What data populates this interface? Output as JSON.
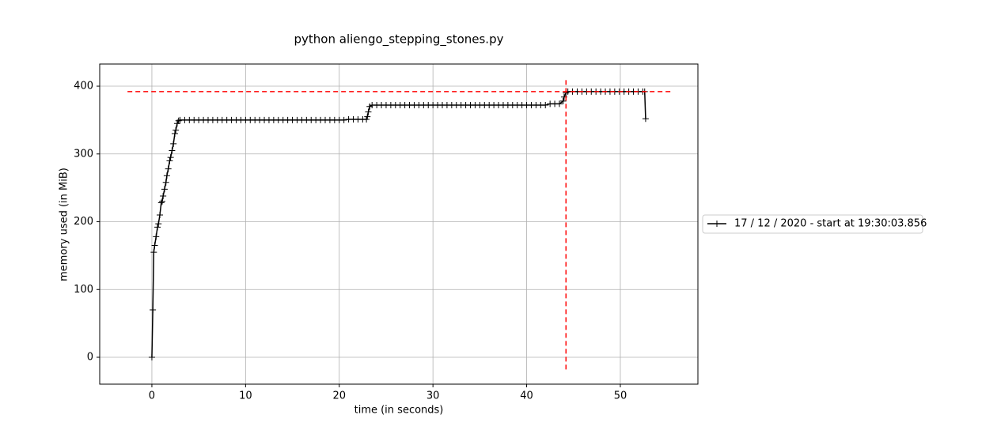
{
  "chart_data": {
    "type": "line",
    "title": "python aliengo_stepping_stones.py",
    "xlabel": "time (in seconds)",
    "ylabel": "memory used (in MiB)",
    "x": [
      0,
      0.1,
      0.2,
      0.3,
      0.45,
      0.6,
      0.7,
      0.85,
      1.0,
      1.1,
      1.2,
      1.35,
      1.5,
      1.6,
      1.75,
      1.9,
      2.0,
      2.15,
      2.3,
      2.45,
      2.55,
      2.7,
      2.85,
      3,
      3.5,
      4,
      4.5,
      5,
      5.5,
      6,
      6.5,
      7,
      7.5,
      8,
      8.5,
      9,
      9.5,
      10,
      10.5,
      11,
      11.5,
      12,
      12.5,
      13,
      13.5,
      14,
      14.5,
      15,
      15.5,
      16,
      16.5,
      17,
      17.5,
      18,
      18.5,
      19,
      19.5,
      20,
      20.5,
      21,
      21.5,
      22,
      22.5,
      22.9,
      23.0,
      23.1,
      23.25,
      23.5,
      24,
      24.5,
      25,
      25.5,
      26,
      26.5,
      27,
      27.5,
      28,
      28.5,
      29,
      29.5,
      30,
      30.5,
      31,
      31.5,
      32,
      32.5,
      33,
      33.5,
      34,
      34.5,
      35,
      35.5,
      36,
      36.5,
      37,
      37.5,
      38,
      38.5,
      39,
      39.5,
      40,
      40.5,
      41,
      41.5,
      42,
      42.5,
      43,
      43.5,
      43.9,
      44.0,
      44.2,
      44.4,
      44.9,
      45.4,
      45.9,
      46.4,
      46.9,
      47.4,
      47.9,
      48.4,
      48.9,
      49.4,
      49.9,
      50.4,
      50.9,
      51.4,
      51.9,
      52.4,
      52.6,
      52.7
    ],
    "series": [
      {
        "name": "17 / 12 / 2020 - start at 19:30:03.856",
        "color": "#000000",
        "values": [
          0,
          70,
          155,
          165,
          178,
          192,
          197,
          210,
          228,
          230,
          238,
          248,
          258,
          268,
          278,
          290,
          295,
          305,
          315,
          330,
          335,
          345,
          349,
          350,
          350,
          350,
          350,
          350,
          350,
          350,
          350,
          350,
          350,
          350,
          350,
          350,
          350,
          350,
          350,
          350,
          350,
          350,
          350,
          350,
          350,
          350,
          350,
          350,
          350,
          350,
          350,
          350,
          350,
          350,
          350,
          350,
          350,
          350,
          350,
          351,
          351,
          351,
          351,
          351,
          355,
          362,
          370,
          372,
          372,
          372,
          372,
          372,
          372,
          372,
          372,
          372,
          372,
          372,
          372,
          372,
          372,
          372,
          372,
          372,
          372,
          372,
          372,
          372,
          372,
          372,
          372,
          372,
          372,
          372,
          372,
          372,
          372,
          372,
          372,
          372,
          372,
          372,
          372,
          372,
          372,
          374,
          374,
          374,
          378,
          384,
          390,
          392,
          392,
          392,
          392,
          392,
          392,
          392,
          392,
          392,
          392,
          392,
          392,
          392,
          392,
          392,
          392,
          392,
          392,
          352
        ]
      }
    ],
    "hlines": [
      {
        "y": 392,
        "xmin": -2.6,
        "xmax": 55.4,
        "color": "#ff0000"
      }
    ],
    "vlines": [
      {
        "x": 44.2,
        "ymin": -18,
        "ymax": 412,
        "color": "#ff0000"
      }
    ],
    "xlim": [
      -5.57,
      58.28
    ],
    "ylim": [
      -39.65,
      432.7
    ],
    "xticks": [
      0,
      10,
      20,
      30,
      40,
      50
    ],
    "yticks": [
      0,
      100,
      200,
      300,
      400
    ],
    "grid": true,
    "legend": "right"
  }
}
